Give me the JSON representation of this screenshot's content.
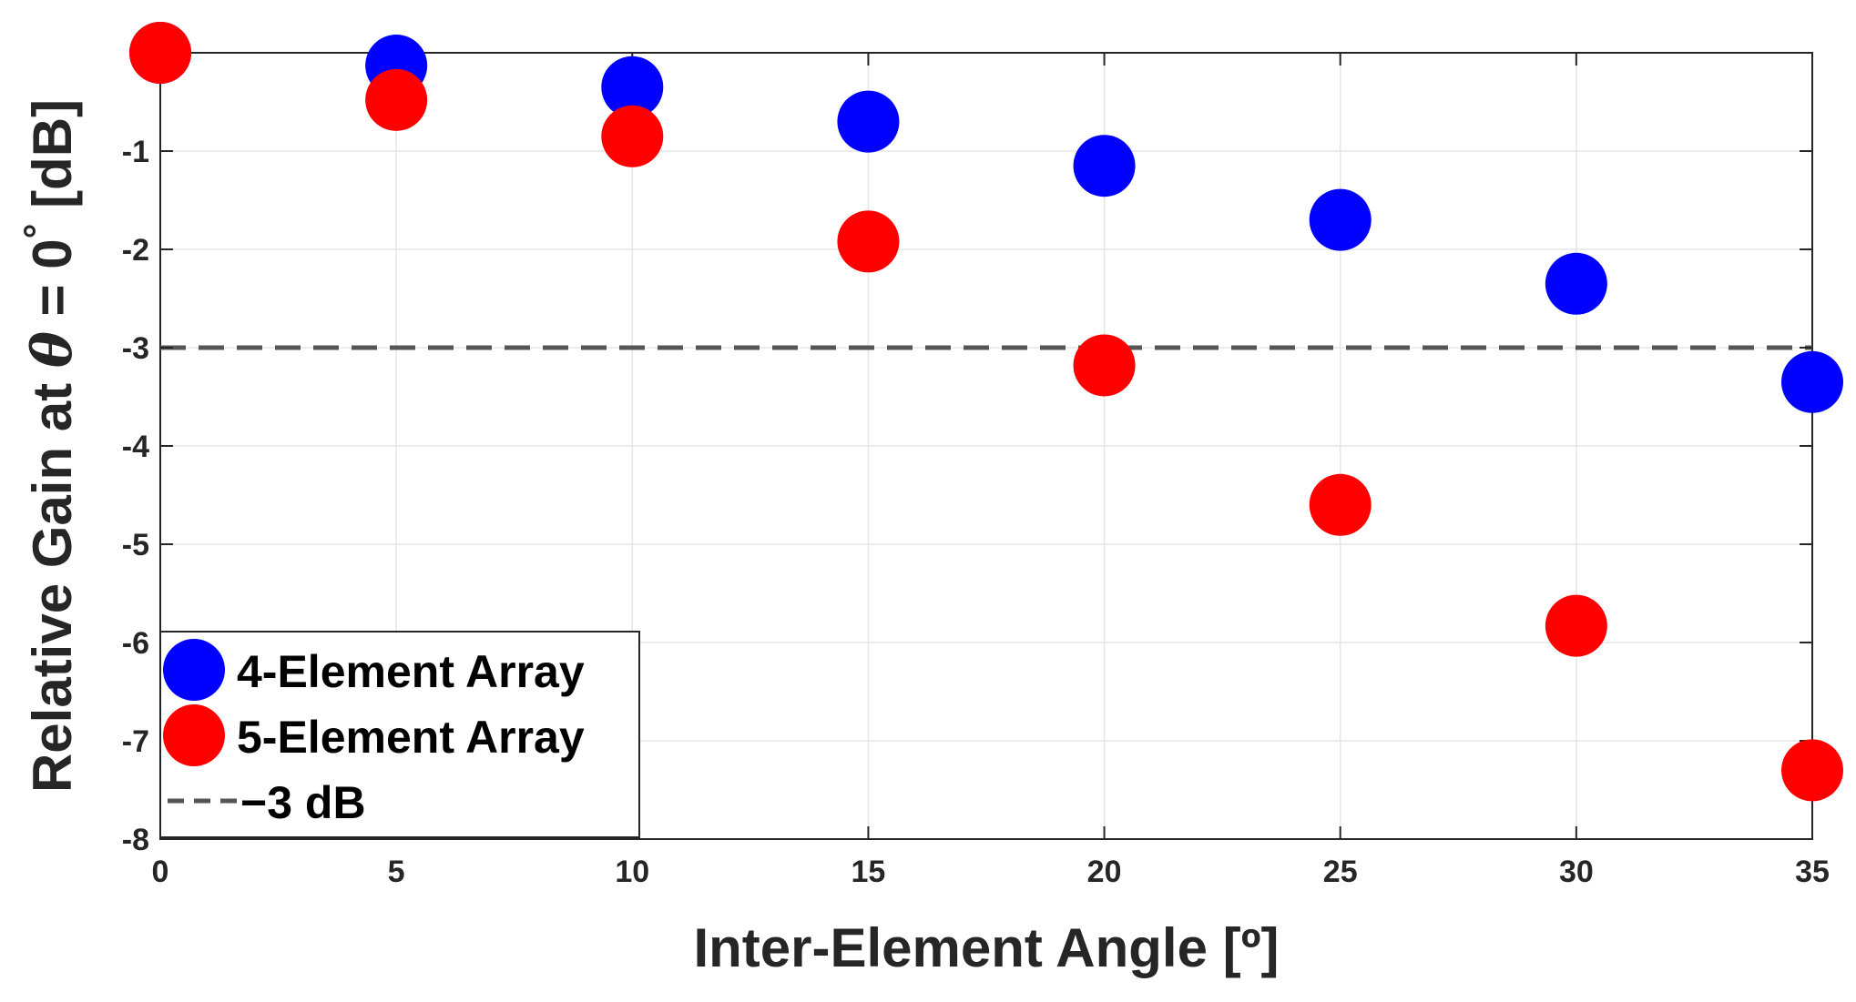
{
  "chart_data": {
    "type": "scatter",
    "xlabel": "Inter-Element Angle [º]",
    "ylabel_parts": {
      "prefix": "Relative Gain at ",
      "theta": "θ",
      "middle": " = 0",
      "degree": "°",
      "suffix": " [dB]"
    },
    "xlim": [
      0,
      35
    ],
    "ylim": [
      -8,
      0
    ],
    "xticks": [
      0,
      5,
      10,
      15,
      20,
      25,
      30,
      35
    ],
    "yticks": [
      -8,
      -7,
      -6,
      -5,
      -4,
      -3,
      -2,
      -1
    ],
    "grid": true,
    "legend_placement": "bottom-left",
    "series": [
      {
        "name": "4-Element Array",
        "color": "#0000ff",
        "x": [
          0,
          5,
          10,
          15,
          20,
          25,
          30,
          35
        ],
        "y": [
          0,
          -0.13,
          -0.35,
          -0.7,
          -1.15,
          -1.7,
          -2.35,
          -3.35
        ]
      },
      {
        "name": "5-Element Array",
        "color": "#ff0000",
        "x": [
          0,
          5,
          10,
          15,
          20,
          25,
          30,
          35
        ],
        "y": [
          0,
          -0.48,
          -0.85,
          -1.92,
          -3.18,
          -4.6,
          -5.83,
          -7.3
        ]
      }
    ],
    "reference_line": {
      "name": "−3 dB",
      "y": -3,
      "color": "#555555",
      "style": "dashed"
    }
  }
}
